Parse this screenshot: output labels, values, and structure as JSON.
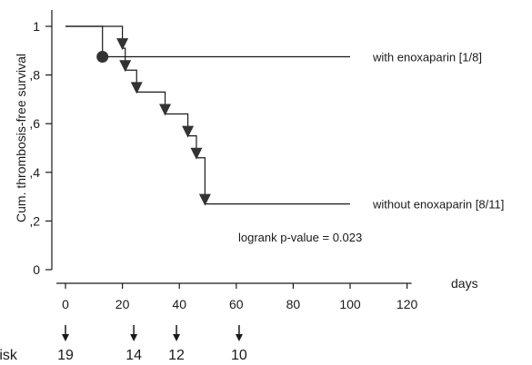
{
  "chart_data": {
    "type": "line",
    "chart_subtype": "kaplan-meier",
    "ylabel": "Cum. thrombosis-free survival",
    "xlabel": "days",
    "xlim": [
      0,
      120
    ],
    "ylim": [
      0,
      1
    ],
    "x_ticks": [
      0,
      20,
      40,
      60,
      80,
      100,
      120
    ],
    "y_ticks": [
      {
        "value": 0,
        "label": "0"
      },
      {
        "value": 0.2,
        "label": ",2"
      },
      {
        "value": 0.4,
        "label": ",4"
      },
      {
        "value": 0.6,
        "label": ",6"
      },
      {
        "value": 0.8,
        "label": ",8"
      },
      {
        "value": 1,
        "label": "1"
      }
    ],
    "grid": false,
    "series": [
      {
        "name": "with enoxaparin [1/8]",
        "marker": "circle",
        "steps": [
          {
            "x": 0,
            "y": 1.0
          },
          {
            "x": 13,
            "y": 0.875
          },
          {
            "x": 100,
            "y": 0.875
          }
        ],
        "events": [
          {
            "x": 13,
            "y": 0.875
          }
        ]
      },
      {
        "name": "without enoxaparin [8/11]",
        "marker": "triangle-down",
        "steps": [
          {
            "x": 0,
            "y": 1.0
          },
          {
            "x": 20,
            "y": 0.91
          },
          {
            "x": 21,
            "y": 0.82
          },
          {
            "x": 25,
            "y": 0.73
          },
          {
            "x": 35,
            "y": 0.64
          },
          {
            "x": 43,
            "y": 0.55
          },
          {
            "x": 46,
            "y": 0.46
          },
          {
            "x": 49,
            "y": 0.27
          },
          {
            "x": 100,
            "y": 0.27
          }
        ],
        "events": [
          {
            "x": 20,
            "y": 0.91
          },
          {
            "x": 21,
            "y": 0.82
          },
          {
            "x": 25,
            "y": 0.73
          },
          {
            "x": 35,
            "y": 0.64
          },
          {
            "x": 43,
            "y": 0.55
          },
          {
            "x": 46,
            "y": 0.46
          },
          {
            "x": 49,
            "y": 0.27
          }
        ]
      }
    ],
    "annotations": [
      {
        "text": "logrank p-value = 0.023"
      }
    ],
    "risk_table": {
      "label": "risk",
      "times": [
        0,
        24,
        39,
        61
      ],
      "counts": [
        "19",
        "14",
        "12",
        "10"
      ]
    }
  },
  "colors": {
    "line": "#1a1a1a",
    "marker": "#333333"
  }
}
